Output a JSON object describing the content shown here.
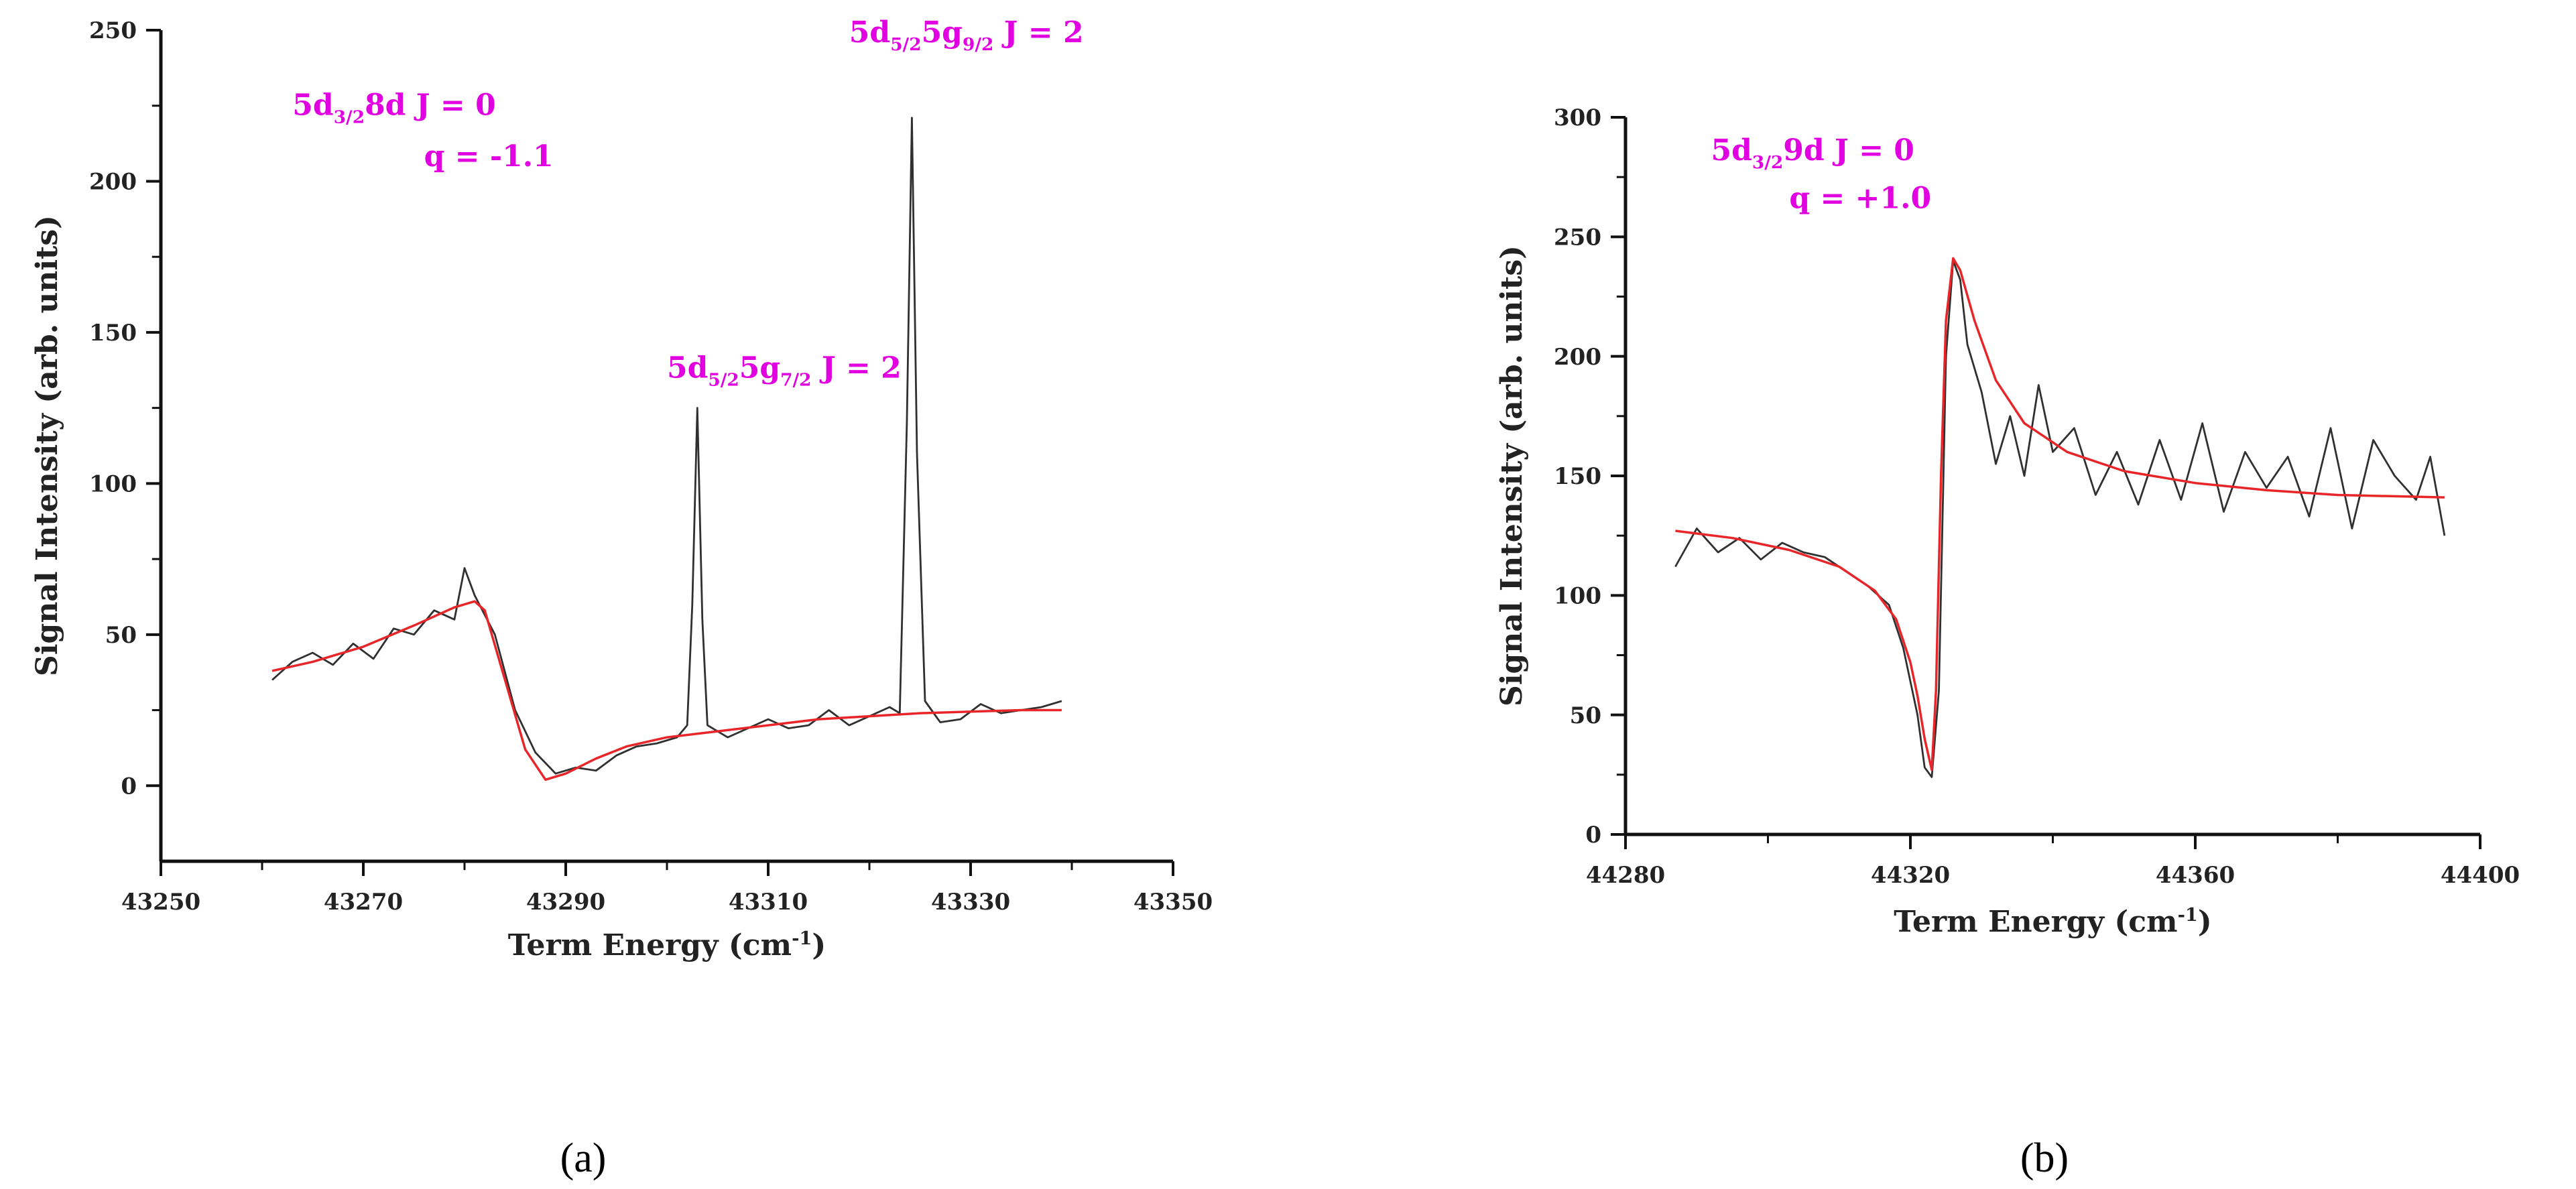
{
  "colors": {
    "data": "#303030",
    "fit": "#e8262a",
    "annotation": "#e000e0",
    "axis": "#111111"
  },
  "panel_labels": [
    "(a)",
    "(b)"
  ],
  "chart_data": [
    {
      "type": "line",
      "panel": "(a)",
      "xlabel": "Term Energy (cm",
      "xlabel_sup": "-1",
      "xlabel_end": ")",
      "ylabel": "Signal Intensity (arb. units)",
      "xlim": [
        43250,
        43350
      ],
      "ylim": [
        -25,
        250
      ],
      "xticks": [
        43250,
        43270,
        43290,
        43310,
        43330,
        43350
      ],
      "yticks": [
        0,
        50,
        100,
        150,
        200,
        250
      ],
      "grid": false,
      "annotations": [
        {
          "id": "a-label-state",
          "main": "5d",
          "sub": "3/2",
          "rest": "8d J = 0",
          "x": 43263,
          "y": 222
        },
        {
          "id": "a-label-q",
          "text": "q = -1.1",
          "x": 43276,
          "y": 205
        },
        {
          "id": "a-label-peak1",
          "main": "5d",
          "sub": "5/2",
          "mid": "5g",
          "sub2": "7/2",
          "rest": " J = 2",
          "x": 43300,
          "y": 135
        },
        {
          "id": "a-label-peak2",
          "main": "5d",
          "sub": "5/2",
          "mid": "5g",
          "sub2": "9/2",
          "rest": " J = 2",
          "x": 43318,
          "y": 246
        }
      ],
      "series": [
        {
          "role": "data",
          "x": [
            43261,
            43263,
            43265,
            43267,
            43269,
            43271,
            43273,
            43275,
            43277,
            43279,
            43280,
            43281,
            43283,
            43285,
            43287,
            43289,
            43291,
            43293,
            43295,
            43297,
            43299,
            43301,
            43302,
            43302.5,
            43303,
            43303.5,
            43304,
            43306,
            43308,
            43310,
            43312,
            43314,
            43316,
            43318,
            43320,
            43322,
            43323,
            43323.7,
            43324.2,
            43324.7,
            43325.5,
            43327,
            43329,
            43331,
            43333,
            43335,
            43337,
            43339
          ],
          "y": [
            35,
            41,
            44,
            40,
            47,
            42,
            52,
            50,
            58,
            55,
            72,
            63,
            50,
            25,
            11,
            4,
            6,
            5,
            10,
            13,
            14,
            16,
            20,
            60,
            125,
            55,
            20,
            16,
            19,
            22,
            19,
            20,
            25,
            20,
            23,
            26,
            24,
            120,
            221,
            110,
            28,
            21,
            22,
            27,
            24,
            25,
            26,
            28
          ]
        },
        {
          "role": "fit",
          "x": [
            43261,
            43265,
            43270,
            43275,
            43279,
            43281,
            43282,
            43284,
            43286,
            43288,
            43290,
            43293,
            43296,
            43300,
            43305,
            43310,
            43315,
            43320,
            43325,
            43330,
            43335,
            43339
          ],
          "y": [
            38,
            41,
            46,
            53,
            59,
            61,
            58,
            35,
            12,
            2,
            4,
            9,
            13,
            16,
            18,
            20,
            22,
            23,
            24,
            24.5,
            25,
            25
          ]
        }
      ]
    },
    {
      "type": "line",
      "panel": "(b)",
      "xlabel": "Term Energy (cm",
      "xlabel_sup": "-1",
      "xlabel_end": ")",
      "ylabel": "Signal Intensity (arb. units)",
      "xlim": [
        44280,
        44400
      ],
      "ylim": [
        0,
        300
      ],
      "xticks": [
        44280,
        44320,
        44360,
        44400
      ],
      "yticks": [
        0,
        50,
        100,
        150,
        200,
        250,
        300
      ],
      "grid": false,
      "annotations": [
        {
          "id": "b-label-state",
          "main": "5d",
          "sub": "3/2",
          "rest": "9d J = 0",
          "x": 44292,
          "y": 282
        },
        {
          "id": "b-label-q",
          "text": "q = +1.0",
          "x": 44303,
          "y": 262
        }
      ],
      "series": [
        {
          "role": "data",
          "x": [
            44287,
            44290,
            44293,
            44296,
            44299,
            44302,
            44305,
            44308,
            44311,
            44314,
            44317,
            44319,
            44321,
            44322,
            44323,
            44324,
            44325,
            44326,
            44327,
            44328,
            44330,
            44332,
            44334,
            44336,
            44338,
            44340,
            44343,
            44346,
            44349,
            44352,
            44355,
            44358,
            44361,
            44364,
            44367,
            44370,
            44373,
            44376,
            44379,
            44382,
            44385,
            44388,
            44391,
            44393,
            44395
          ],
          "y": [
            112,
            128,
            118,
            124,
            115,
            122,
            118,
            116,
            110,
            104,
            96,
            78,
            50,
            28,
            24,
            60,
            200,
            240,
            232,
            205,
            185,
            155,
            175,
            150,
            188,
            160,
            170,
            142,
            160,
            138,
            165,
            140,
            172,
            135,
            160,
            145,
            158,
            133,
            170,
            128,
            165,
            150,
            140,
            158,
            125
          ]
        },
        {
          "role": "fit",
          "x": [
            44287,
            44295,
            44303,
            44310,
            44315,
            44318,
            44320,
            44321,
            44322,
            44323,
            44323.6,
            44324.3,
            44325,
            44326,
            44327,
            44329,
            44332,
            44336,
            44342,
            44350,
            44360,
            44370,
            44380,
            44395
          ],
          "y": [
            127,
            124,
            119,
            112,
            102,
            90,
            72,
            58,
            40,
            27,
            60,
            150,
            215,
            241,
            236,
            215,
            190,
            172,
            160,
            152,
            147,
            144,
            142,
            141
          ]
        }
      ]
    }
  ]
}
